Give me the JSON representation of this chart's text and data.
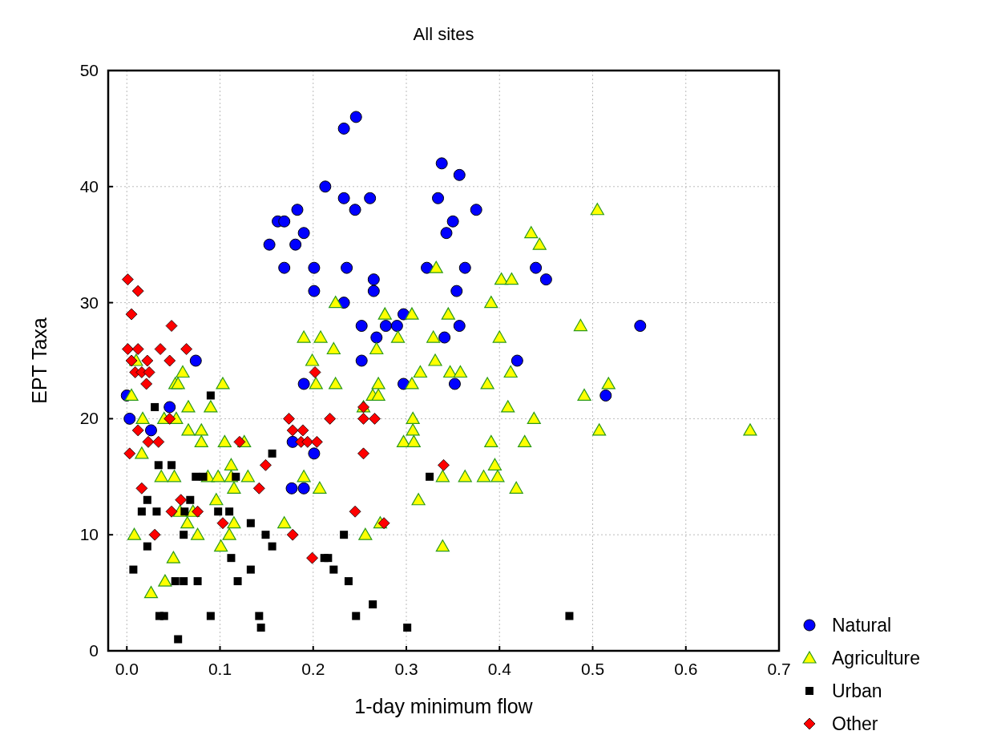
{
  "chart_data": {
    "type": "scatter",
    "title": "All sites",
    "xlabel": "1-day minimum flow",
    "ylabel": "EPT Taxa",
    "xlim": [
      -0.02,
      0.7
    ],
    "ylim": [
      0,
      50
    ],
    "xticks": [
      {
        "value": 0,
        "label": "0.0"
      },
      {
        "value": 0.1,
        "label": "0.1"
      },
      {
        "value": 0.2,
        "label": "0.2"
      },
      {
        "value": 0.3,
        "label": "0.3"
      },
      {
        "value": 0.4,
        "label": "0.4"
      },
      {
        "value": 0.5,
        "label": "0.5"
      },
      {
        "value": 0.6,
        "label": "0.6"
      },
      {
        "value": 0.7,
        "label": "0.7"
      }
    ],
    "yticks": [
      0,
      10,
      20,
      30,
      40,
      50
    ],
    "grid": true,
    "legend": "bottom right",
    "series": [
      {
        "name": "Natural",
        "color": "#0000ff",
        "marker": "circle",
        "x": [
          0.0,
          0.003,
          0.026,
          0.046,
          0.074,
          0.153,
          0.162,
          0.169,
          0.169,
          0.177,
          0.178,
          0.181,
          0.183,
          0.19,
          0.19,
          0.19,
          0.201,
          0.201,
          0.201,
          0.213,
          0.233,
          0.233,
          0.236,
          0.233,
          0.245,
          0.246,
          0.252,
          0.252,
          0.261,
          0.265,
          0.265,
          0.268,
          0.278,
          0.29,
          0.297,
          0.297,
          0.322,
          0.334,
          0.338,
          0.341,
          0.343,
          0.35,
          0.352,
          0.354,
          0.357,
          0.357,
          0.363,
          0.375,
          0.419,
          0.439,
          0.45,
          0.514,
          0.551
        ],
        "values": [
          22,
          20,
          19,
          21,
          25,
          35,
          37,
          37,
          33,
          14,
          18,
          35,
          38,
          36,
          23,
          14,
          33,
          31,
          17,
          40,
          30,
          39,
          33,
          45,
          38,
          46,
          28,
          25,
          39,
          32,
          31,
          27,
          28,
          28,
          29,
          23,
          33,
          39,
          42,
          27,
          36,
          37,
          23,
          31,
          41,
          28,
          33,
          38,
          25,
          33,
          32,
          22,
          28
        ]
      },
      {
        "name": "Agriculture",
        "color": "#ffff00",
        "marker": "triangle",
        "x": [
          0.19,
          0.199,
          0.01,
          0.06,
          0.052,
          0.055,
          0.103,
          0.203,
          0.005,
          0.066,
          0.09,
          0.017,
          0.04,
          0.053,
          0.066,
          0.08,
          0.08,
          0.105,
          0.126,
          0.016,
          0.112,
          0.037,
          0.051,
          0.087,
          0.098,
          0.112,
          0.13,
          0.115,
          0.19,
          0.096,
          0.057,
          0.071,
          0.115,
          0.065,
          0.169,
          0.008,
          0.076,
          0.11,
          0.101,
          0.05,
          0.041,
          0.026,
          0.332,
          0.224,
          0.277,
          0.306,
          0.345,
          0.291,
          0.329,
          0.208,
          0.222,
          0.268,
          0.331,
          0.224,
          0.27,
          0.306,
          0.264,
          0.27,
          0.315,
          0.347,
          0.358,
          0.254,
          0.307,
          0.307,
          0.297,
          0.308,
          0.207,
          0.339,
          0.363,
          0.313,
          0.272,
          0.256,
          0.339,
          0.505,
          0.434,
          0.443,
          0.402,
          0.413,
          0.391,
          0.487,
          0.4,
          0.412,
          0.387,
          0.517,
          0.491,
          0.409,
          0.437,
          0.507,
          0.391,
          0.427,
          0.669,
          0.395,
          0.383,
          0.398,
          0.418
        ],
        "values": [
          27,
          25,
          25,
          24,
          23,
          23,
          23,
          23,
          22,
          21,
          21,
          20,
          20,
          20,
          19,
          19,
          18,
          18,
          18,
          17,
          16,
          15,
          15,
          15,
          15,
          15,
          15,
          14,
          15,
          13,
          12,
          12,
          11,
          11,
          11,
          10,
          10,
          10,
          9,
          8,
          6,
          5,
          33,
          30,
          29,
          29,
          29,
          27,
          27,
          27,
          26,
          26,
          25,
          23,
          23,
          23,
          22,
          22,
          24,
          24,
          24,
          21,
          20,
          19,
          18,
          18,
          14,
          15,
          15,
          13,
          11,
          10,
          9,
          38,
          36,
          35,
          32,
          32,
          30,
          28,
          27,
          24,
          23,
          23,
          22,
          21,
          20,
          19,
          18,
          18,
          19,
          16,
          15,
          15,
          14
        ]
      },
      {
        "name": "Urban",
        "color": "#000000",
        "marker": "square",
        "x": [
          0.09,
          0.03,
          0.156,
          0.034,
          0.048,
          0.074,
          0.082,
          0.117,
          0.022,
          0.068,
          0.016,
          0.032,
          0.062,
          0.098,
          0.11,
          0.133,
          0.061,
          0.149,
          0.022,
          0.156,
          0.112,
          0.133,
          0.007,
          0.052,
          0.061,
          0.076,
          0.119,
          0.035,
          0.04,
          0.09,
          0.142,
          0.144,
          0.055,
          0.212,
          0.216,
          0.222,
          0.238,
          0.264,
          0.246,
          0.301,
          0.233,
          0.325,
          0.475
        ],
        "values": [
          22,
          21,
          17,
          16,
          16,
          15,
          15,
          15,
          13,
          13,
          12,
          12,
          12,
          12,
          12,
          11,
          10,
          10,
          9,
          9,
          8,
          7,
          7,
          6,
          6,
          6,
          6,
          3,
          3,
          3,
          3,
          2,
          1,
          8,
          8,
          7,
          6,
          4,
          3,
          2,
          10,
          15,
          3
        ]
      },
      {
        "name": "Other",
        "color": "#ff0000",
        "marker": "diamond",
        "x": [
          0.001,
          0.012,
          0.005,
          0.048,
          0.001,
          0.012,
          0.036,
          0.064,
          0.005,
          0.022,
          0.046,
          0.009,
          0.016,
          0.024,
          0.021,
          0.046,
          0.012,
          0.023,
          0.034,
          0.003,
          0.016,
          0.048,
          0.03,
          0.058,
          0.076,
          0.103,
          0.121,
          0.149,
          0.142,
          0.178,
          0.199,
          0.202,
          0.174,
          0.218,
          0.254,
          0.266,
          0.254,
          0.178,
          0.189,
          0.187,
          0.194,
          0.204,
          0.254,
          0.34,
          0.245,
          0.276
        ],
        "values": [
          32,
          31,
          29,
          28,
          26,
          26,
          26,
          26,
          25,
          25,
          25,
          24,
          24,
          24,
          23,
          20,
          19,
          18,
          18,
          17,
          14,
          12,
          10,
          13,
          12,
          11,
          18,
          16,
          14,
          10,
          8,
          24,
          20,
          20,
          20,
          20,
          21,
          19,
          19,
          18,
          18,
          18,
          17,
          16,
          12,
          11
        ]
      }
    ]
  }
}
